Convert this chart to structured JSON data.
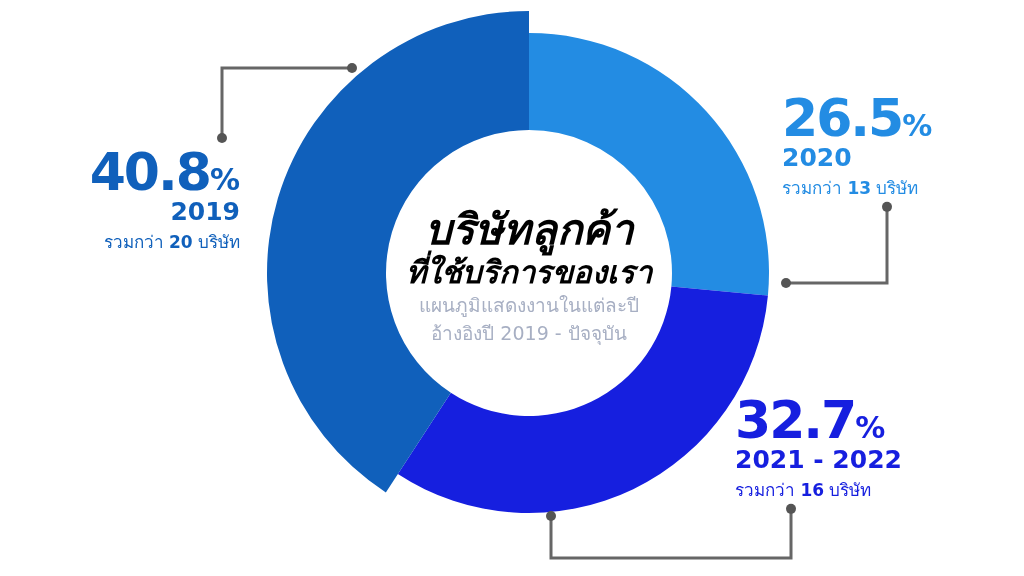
{
  "chart_data": {
    "type": "donut",
    "title": "บริษัทลูกค้า ที่ใช้บริการของเรา",
    "subtitle": "แผนภูมิแสดงงานในแต่ละปี อ้างอิงปี 2019 - ปัจจุบัน",
    "categories": [
      "2020",
      "2021 - 2022",
      "2019"
    ],
    "values": [
      26.5,
      32.7,
      40.8
    ],
    "value_labels": [
      "26.5%",
      "32.7%",
      "40.8%"
    ],
    "colors": [
      "#238ce3",
      "#161fdf",
      "#1060bb"
    ],
    "annotations": [
      "รวมกว่า 13 บริษัท",
      "รวมกว่า 16 บริษัท",
      "รวมกว่า 20 บริษัท"
    ]
  }
}
